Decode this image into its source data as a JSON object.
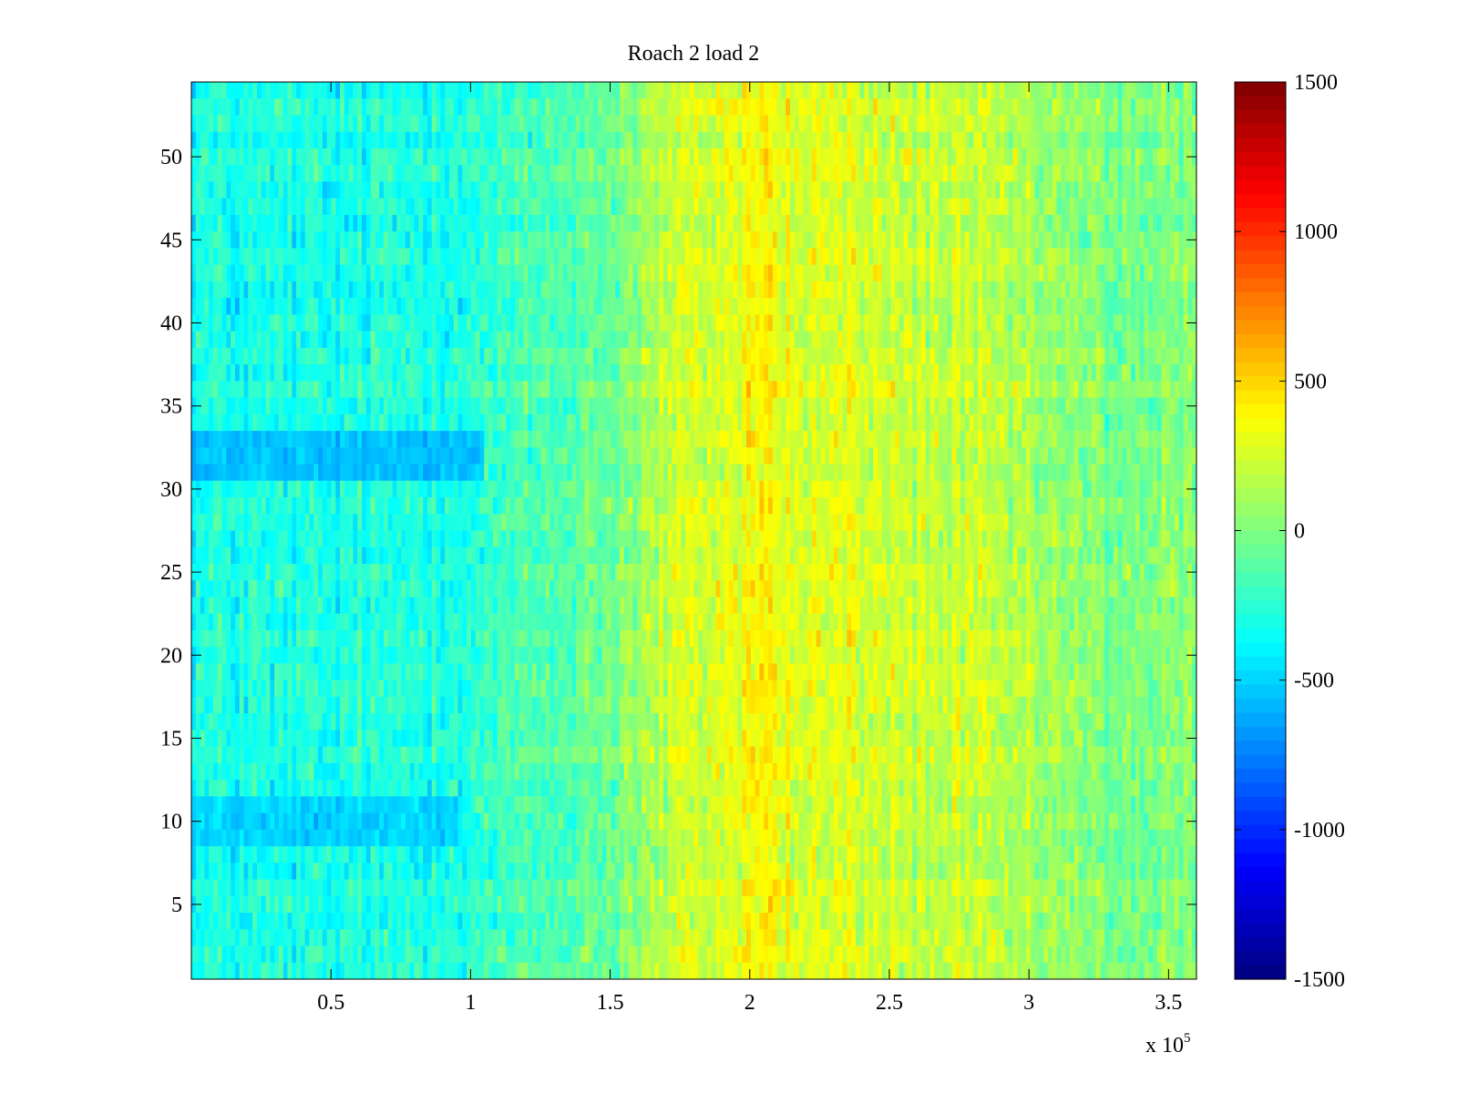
{
  "chart_data": {
    "type": "heatmap",
    "title": "Roach 2 load 2",
    "xlabel": "",
    "ylabel": "",
    "x_exponent_prefix": "x 10",
    "x_exponent_power": "5",
    "xlim": [
      0,
      3.6
    ],
    "ylim": [
      0.5,
      54.5
    ],
    "rows": 54,
    "x_ticks": [
      0.5,
      1,
      1.5,
      2,
      2.5,
      3,
      3.5
    ],
    "x_tick_labels": [
      "0.5",
      "1",
      "1.5",
      "2",
      "2.5",
      "3",
      "3.5"
    ],
    "y_ticks": [
      5,
      10,
      15,
      20,
      25,
      30,
      35,
      40,
      45,
      50
    ],
    "y_tick_labels": [
      "5",
      "10",
      "15",
      "20",
      "25",
      "30",
      "35",
      "40",
      "45",
      "50"
    ],
    "colorbar": {
      "colormap": "jet",
      "clim": [
        -1500,
        1500
      ],
      "ticks": [
        1500,
        1000,
        500,
        0,
        -500,
        -1000,
        -1500
      ],
      "tick_labels": [
        "1500",
        "1000",
        "500",
        "0",
        "-500",
        "-1000",
        "-1500"
      ]
    },
    "column_profile": {
      "x": [
        0,
        0.5,
        1.0,
        1.3,
        1.55,
        1.7,
        1.85,
        2.0,
        2.05,
        2.15,
        2.3,
        2.5,
        2.7,
        2.9,
        3.1,
        3.3,
        3.6
      ],
      "mean_value": [
        -300,
        -320,
        -250,
        -150,
        0,
        180,
        250,
        350,
        420,
        260,
        280,
        220,
        200,
        150,
        60,
        -20,
        0
      ]
    },
    "row_anomalies": [
      {
        "rows": [
          31,
          32,
          33
        ],
        "x_range": [
          0,
          1.05
        ],
        "mean_value": -700
      },
      {
        "rows": [
          9,
          10,
          11
        ],
        "x_range": [
          0,
          0.95
        ],
        "mean_value": -600
      }
    ],
    "grid": false,
    "legend": "none"
  }
}
